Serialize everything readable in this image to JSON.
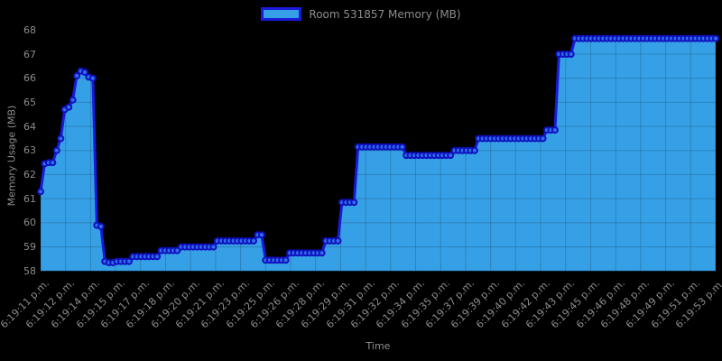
{
  "chart_data": {
    "type": "line",
    "style": "stepped area fill with circular point markers on black background",
    "legend": {
      "label": "Room 531857 Memory (MB)",
      "position": "top"
    },
    "xlabel": "Time",
    "ylabel": "Memory Usage (MB)",
    "ylim": [
      58,
      68
    ],
    "grid": "on (translucent dark gridlines visible over area fill)",
    "y_ticks": [
      58,
      59,
      60,
      61,
      62,
      63,
      64,
      65,
      66,
      67,
      68
    ],
    "x_tick_labels": [
      "6:19:11 p.m.",
      "6:19:12 p.m.",
      "6:19:14 p.m.",
      "6:19:15 p.m.",
      "6:19:17 p.m.",
      "6:19:18 p.m.",
      "6:19:20 p.m.",
      "6:19:21 p.m.",
      "6:19:23 p.m.",
      "6:19:25 p.m.",
      "6:19:26 p.m.",
      "6:19:28 p.m.",
      "6:19:29 p.m.",
      "6:19:31 p.m.",
      "6:19:32 p.m.",
      "6:19:34 p.m.",
      "6:19:35 p.m.",
      "6:19:37 p.m.",
      "6:19:39 p.m.",
      "6:19:40 p.m.",
      "6:19:42 p.m.",
      "6:19:43 p.m.",
      "6:19:45 p.m.",
      "6:19:46 p.m.",
      "6:19:48 p.m.",
      "6:19:49 p.m.",
      "6:19:51 p.m.",
      "6:19:53 p.m."
    ],
    "series": [
      {
        "name": "Room 531857 Memory (MB)",
        "start_label": "6:19:11 p.m.",
        "end_label": "6:19:53 p.m.",
        "sample_interval_seconds": 0.25,
        "values": [
          61.3,
          62.45,
          62.5,
          62.5,
          63.0,
          63.5,
          64.7,
          64.8,
          65.1,
          66.1,
          66.3,
          66.25,
          66.05,
          66.0,
          59.9,
          59.85,
          58.4,
          58.35,
          58.35,
          58.4,
          58.4,
          58.4,
          58.4,
          58.6,
          58.6,
          58.6,
          58.6,
          58.6,
          58.6,
          58.6,
          58.85,
          58.85,
          58.85,
          58.85,
          58.85,
          59.0,
          59.0,
          59.0,
          59.0,
          59.0,
          59.0,
          59.0,
          59.0,
          59.0,
          59.25,
          59.25,
          59.25,
          59.25,
          59.25,
          59.25,
          59.25,
          59.25,
          59.25,
          59.25,
          59.5,
          59.5,
          58.45,
          58.45,
          58.45,
          58.45,
          58.45,
          58.45,
          58.75,
          58.75,
          58.75,
          58.75,
          58.75,
          58.75,
          58.75,
          58.75,
          58.75,
          59.25,
          59.25,
          59.25,
          59.25,
          60.85,
          60.85,
          60.85,
          60.85,
          63.15,
          63.15,
          63.15,
          63.15,
          63.15,
          63.15,
          63.15,
          63.15,
          63.15,
          63.15,
          63.15,
          63.15,
          62.8,
          62.8,
          62.8,
          62.8,
          62.8,
          62.8,
          62.8,
          62.8,
          62.8,
          62.8,
          62.8,
          62.8,
          63.0,
          63.0,
          63.0,
          63.0,
          63.0,
          63.0,
          63.5,
          63.5,
          63.5,
          63.5,
          63.5,
          63.5,
          63.5,
          63.5,
          63.5,
          63.5,
          63.5,
          63.5,
          63.5,
          63.5,
          63.5,
          63.5,
          63.5,
          63.85,
          63.85,
          63.85,
          67.0,
          67.0,
          67.0,
          67.0,
          67.65,
          67.65,
          67.65,
          67.65,
          67.65,
          67.65,
          67.65,
          67.65,
          67.65,
          67.65,
          67.65,
          67.65,
          67.65,
          67.65,
          67.65,
          67.65,
          67.65,
          67.65,
          67.65,
          67.65,
          67.65,
          67.65,
          67.65,
          67.65,
          67.65,
          67.65,
          67.65,
          67.65,
          67.65,
          67.65,
          67.65,
          67.65,
          67.65,
          67.65,
          67.65,
          67.65
        ]
      }
    ],
    "colors": {
      "background": "#000000",
      "area_fill": "#36a0e6",
      "line": "#1a1ada",
      "marker_fill": "#2f6fe8",
      "marker_stroke": "#0f0fbe",
      "text": "#8c8c8c",
      "grid_overlay": "rgba(0,0,0,0.18)"
    }
  }
}
